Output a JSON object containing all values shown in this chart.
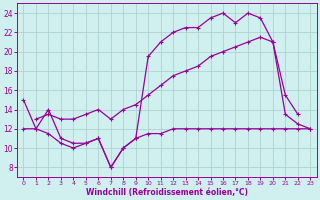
{
  "xlabel": "Windchill (Refroidissement éolien,°C)",
  "color": "#990099",
  "bg_color": "#d0f0f0",
  "grid_color": "#aacccc",
  "ylim": [
    7,
    25
  ],
  "xlim": [
    -0.5,
    23.5
  ],
  "yticks": [
    8,
    10,
    12,
    14,
    16,
    18,
    20,
    22,
    24
  ],
  "xticks": [
    0,
    1,
    2,
    3,
    4,
    5,
    6,
    7,
    8,
    9,
    10,
    11,
    12,
    13,
    14,
    15,
    16,
    17,
    18,
    19,
    20,
    21,
    22,
    23
  ],
  "line_jagged": {
    "x": [
      0,
      1,
      2,
      3,
      4,
      5,
      6,
      7,
      8,
      9,
      10,
      11,
      12,
      13,
      14,
      15,
      16,
      17,
      18,
      19,
      20,
      21,
      22,
      23
    ],
    "y": [
      15,
      12,
      14,
      11,
      10.5,
      10.5,
      11,
      8,
      10,
      11,
      19.5,
      21,
      22,
      22.5,
      22.5,
      23.5,
      24,
      23,
      24,
      23.5,
      21,
      15.5,
      13.5,
      null
    ]
  },
  "line_rising": {
    "x": [
      1,
      2,
      3,
      4,
      5,
      6,
      7,
      8,
      9,
      10,
      11,
      12,
      13,
      14,
      15,
      16,
      17,
      18,
      19,
      20,
      21,
      22,
      23
    ],
    "y": [
      13,
      13.5,
      13,
      13,
      13.5,
      14,
      13,
      14,
      14.5,
      15.5,
      16.5,
      17.5,
      18,
      18.5,
      19.5,
      20,
      20.5,
      21,
      21.5,
      21,
      13.5,
      12.5,
      12
    ]
  },
  "line_flat": {
    "x": [
      0,
      1,
      2,
      3,
      4,
      5,
      6,
      7,
      8,
      9,
      10,
      11,
      12,
      13,
      14,
      15,
      16,
      17,
      18,
      19,
      20,
      21,
      22,
      23
    ],
    "y": [
      12,
      12,
      11.5,
      10.5,
      10,
      10.5,
      11,
      8,
      10,
      11,
      11.5,
      11.5,
      12,
      12,
      12,
      12,
      12,
      12,
      12,
      12,
      12,
      12,
      12,
      12
    ]
  }
}
